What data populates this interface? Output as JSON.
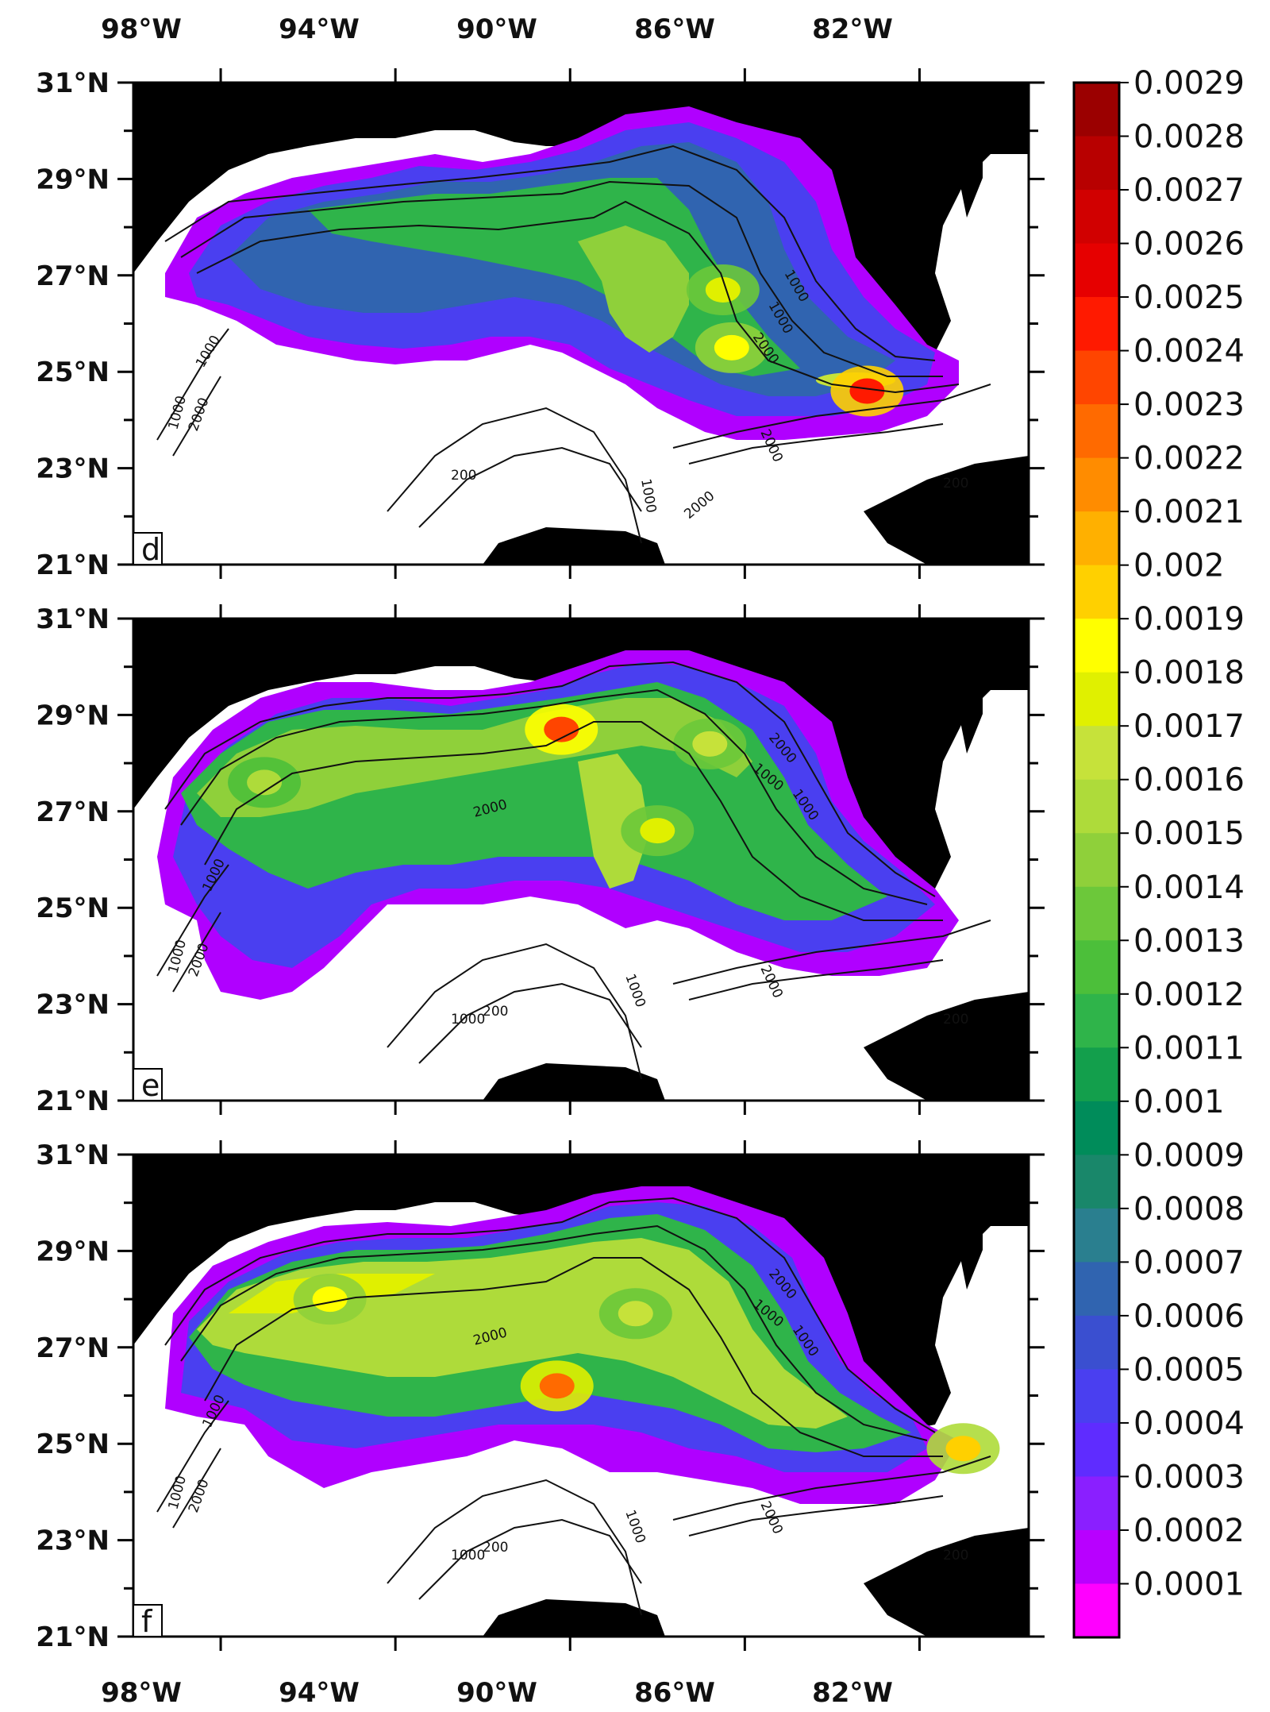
{
  "figure": {
    "top_lon_labels": [
      "98°W",
      "94°W",
      "90°W",
      "86°W",
      "82°W"
    ],
    "bottom_lon_labels": [
      "98°W",
      "94°W",
      "90°W",
      "86°W",
      "82°W"
    ],
    "lat_labels": [
      "31°N",
      "29°N",
      "27°N",
      "25°N",
      "23°N",
      "21°N"
    ],
    "lon_values": [
      -98,
      -94,
      -90,
      -86,
      -82
    ],
    "lat_values": [
      31,
      29,
      27,
      25,
      23,
      21
    ],
    "lon_range": [
      -100,
      -79.5
    ],
    "lat_range": [
      21,
      31
    ],
    "panels": [
      {
        "letter": "d",
        "hotspots": [
          {
            "lon": -86.5,
            "lat": 26.7,
            "value": 0.0018
          },
          {
            "lon": -86.3,
            "lat": 25.5,
            "value": 0.0019
          },
          {
            "lon": -83.2,
            "lat": 24.6,
            "value": 0.0025
          }
        ],
        "contour_labels": [
          "1000",
          "1000",
          "2000",
          "1000",
          "2000",
          "1000",
          "200",
          "2000",
          "1000",
          "2000",
          "200"
        ]
      },
      {
        "letter": "e",
        "hotspots": [
          {
            "lon": -88.0,
            "lat": 26.6,
            "value": 0.0018
          },
          {
            "lon": -90.2,
            "lat": 28.7,
            "value": 0.0024
          },
          {
            "lon": -86.8,
            "lat": 28.4,
            "value": 0.0017
          },
          {
            "lon": -97.0,
            "lat": 27.6,
            "value": 0.0016
          }
        ],
        "contour_labels": [
          "1000",
          "2000",
          "1000",
          "2000",
          "1000",
          "2000",
          "1000",
          "1000",
          "1000",
          "200",
          "2000",
          "200"
        ]
      },
      {
        "letter": "f",
        "hotspots": [
          {
            "lon": -90.3,
            "lat": 26.2,
            "value": 0.0023
          },
          {
            "lon": -95.5,
            "lat": 28.0,
            "value": 0.0019
          },
          {
            "lon": -81.0,
            "lat": 24.9,
            "value": 0.002
          },
          {
            "lon": -88.5,
            "lat": 27.7,
            "value": 0.0017
          }
        ],
        "contour_labels": [
          "1000",
          "2000",
          "1000",
          "2000",
          "1000",
          "2000",
          "1000",
          "1000",
          "1000",
          "200",
          "2000",
          "200"
        ]
      }
    ],
    "colorbar": {
      "labels": [
        "0.0029",
        "0.0028",
        "0.0027",
        "0.0026",
        "0.0025",
        "0.0024",
        "0.0023",
        "0.0022",
        "0.0021",
        "0.002",
        "0.0019",
        "0.0018",
        "0.0017",
        "0.0016",
        "0.0015",
        "0.0014",
        "0.0013",
        "0.0012",
        "0.0011",
        "0.001",
        "0.0009",
        "0.0008",
        "0.0007",
        "0.0006",
        "0.0005",
        "0.0004",
        "0.0003",
        "0.0002",
        "0.0001"
      ],
      "colors": [
        "#9b0000",
        "#b80000",
        "#d10000",
        "#e60000",
        "#ff1a00",
        "#ff4500",
        "#ff6a00",
        "#ff8c00",
        "#ffb000",
        "#ffd000",
        "#ffff00",
        "#e0f000",
        "#c6e23a",
        "#aedb3a",
        "#8fd03a",
        "#6cc83a",
        "#4cbf3a",
        "#2fb44a",
        "#139f4c",
        "#008c5a",
        "#19876a",
        "#2a7f8f",
        "#3064b0",
        "#3a4fd0",
        "#4a3ff0",
        "#5f2cff",
        "#8a1fff",
        "#b800ff",
        "#ff00ff"
      ]
    },
    "land_color": "#000000",
    "ocean_color": "#ffffff"
  }
}
